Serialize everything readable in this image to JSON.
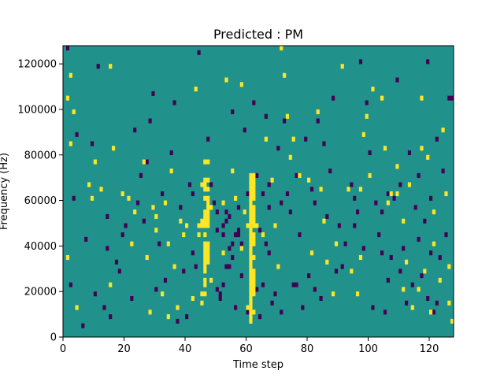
{
  "chart_data": {
    "type": "heatmap",
    "title": "Predicted : PM",
    "xlabel": "Time step",
    "ylabel": "Frequency (Hz)",
    "xlim": [
      0,
      128
    ],
    "ylim": [
      0,
      128000
    ],
    "grid": false,
    "legend": "none",
    "x_ticks": [
      0,
      20,
      40,
      60,
      80,
      100,
      120
    ],
    "x_tick_labels": [
      "0",
      "20",
      "40",
      "60",
      "80",
      "100",
      "120"
    ],
    "y_ticks": [
      0,
      20000,
      40000,
      60000,
      80000,
      100000,
      120000
    ],
    "y_tick_labels": [
      "0",
      "20000",
      "40000",
      "60000",
      "80000",
      "100000",
      "120000"
    ],
    "frequency_bins": 64,
    "colors": {
      "low": "#440154",
      "mid": "#21918c",
      "high": "#fde725"
    },
    "background_value": 0,
    "value_levels": {
      "low": -1,
      "mid": 0,
      "high": 1
    },
    "high_cells": [
      [
        46,
        76000
      ],
      [
        47,
        76000
      ],
      [
        46,
        68000
      ],
      [
        47,
        68000
      ],
      [
        45,
        66000
      ],
      [
        46,
        66000
      ],
      [
        46,
        64000
      ],
      [
        47,
        64000
      ],
      [
        46,
        60000
      ],
      [
        47,
        60000
      ],
      [
        47,
        58000
      ],
      [
        47,
        56000
      ],
      [
        46,
        54000
      ],
      [
        47,
        54000
      ],
      [
        46,
        52000
      ],
      [
        47,
        52000
      ],
      [
        45,
        50000
      ],
      [
        46,
        50000
      ],
      [
        47,
        50000
      ],
      [
        44,
        48000
      ],
      [
        45,
        48000
      ],
      [
        46,
        48000
      ],
      [
        47,
        48000
      ],
      [
        46,
        44000
      ],
      [
        46,
        40000
      ],
      [
        47,
        40000
      ],
      [
        46,
        38000
      ],
      [
        47,
        38000
      ],
      [
        46,
        36000
      ],
      [
        47,
        36000
      ],
      [
        46,
        34000
      ],
      [
        47,
        34000
      ],
      [
        46,
        32000
      ],
      [
        47,
        32000
      ],
      [
        46,
        30000
      ],
      [
        46,
        28000
      ],
      [
        46,
        24000
      ],
      [
        46,
        22000
      ],
      [
        45,
        18000
      ],
      [
        46,
        18000
      ],
      [
        45,
        14000
      ],
      [
        48,
        24000
      ],
      [
        61,
        70000
      ],
      [
        62,
        70000
      ],
      [
        61,
        68000
      ],
      [
        62,
        68000
      ],
      [
        61,
        66000
      ],
      [
        62,
        66000
      ],
      [
        61,
        64000
      ],
      [
        62,
        64000
      ],
      [
        61,
        62000
      ],
      [
        62,
        62000
      ],
      [
        61,
        60000
      ],
      [
        62,
        60000
      ],
      [
        61,
        58000
      ],
      [
        61,
        56000
      ],
      [
        62,
        56000
      ],
      [
        61,
        54000
      ],
      [
        62,
        54000
      ],
      [
        61,
        52000
      ],
      [
        62,
        52000
      ],
      [
        61,
        50000
      ],
      [
        62,
        50000
      ],
      [
        60,
        48000
      ],
      [
        61,
        48000
      ],
      [
        62,
        48000
      ],
      [
        61,
        46000
      ],
      [
        61,
        44000
      ],
      [
        62,
        44000
      ],
      [
        61,
        42000
      ],
      [
        62,
        42000
      ],
      [
        61,
        40000
      ],
      [
        62,
        40000
      ],
      [
        61,
        38000
      ],
      [
        61,
        36000
      ],
      [
        61,
        34000
      ],
      [
        62,
        34000
      ],
      [
        61,
        32000
      ],
      [
        61,
        30000
      ],
      [
        61,
        28000
      ],
      [
        62,
        28000
      ],
      [
        61,
        26000
      ],
      [
        62,
        26000
      ],
      [
        61,
        24000
      ],
      [
        62,
        24000
      ],
      [
        61,
        22000
      ],
      [
        62,
        22000
      ],
      [
        61,
        20000
      ],
      [
        62,
        20000
      ],
      [
        61,
        18000
      ],
      [
        62,
        18000
      ],
      [
        61,
        16000
      ],
      [
        61,
        14000
      ],
      [
        60,
        12000
      ],
      [
        61,
        12000
      ],
      [
        61,
        10000
      ],
      [
        62,
        10000
      ],
      [
        61,
        8000
      ],
      [
        61,
        6000
      ],
      [
        4,
        12000
      ],
      [
        2,
        84000
      ],
      [
        2,
        114000
      ],
      [
        1,
        104000
      ],
      [
        8,
        66000
      ],
      [
        9,
        60000
      ],
      [
        10,
        76000
      ],
      [
        15,
        118000
      ],
      [
        16,
        82000
      ],
      [
        22,
        40000
      ],
      [
        21,
        60000
      ],
      [
        27,
        34000
      ],
      [
        29,
        56000
      ],
      [
        30,
        46000
      ],
      [
        30,
        52000
      ],
      [
        34,
        40000
      ],
      [
        36,
        30000
      ],
      [
        39,
        44000
      ],
      [
        40,
        48000
      ],
      [
        43,
        108000
      ],
      [
        44,
        44000
      ],
      [
        52,
        36000
      ],
      [
        55,
        72000
      ],
      [
        56,
        60000
      ],
      [
        59,
        54000
      ],
      [
        63,
        48000
      ],
      [
        58,
        38000
      ],
      [
        65,
        44000
      ],
      [
        66,
        86000
      ],
      [
        71,
        126000
      ],
      [
        75,
        86000
      ],
      [
        77,
        70000
      ],
      [
        80,
        68000
      ],
      [
        84,
        64000
      ],
      [
        85,
        50000
      ],
      [
        88,
        18000
      ],
      [
        89,
        40000
      ],
      [
        94,
        28000
      ],
      [
        96,
        18000
      ],
      [
        97,
        34000
      ],
      [
        98,
        88000
      ],
      [
        100,
        70000
      ],
      [
        101,
        108000
      ],
      [
        106,
        58000
      ],
      [
        107,
        62000
      ],
      [
        109,
        62000
      ],
      [
        111,
        20000
      ],
      [
        112,
        32000
      ],
      [
        114,
        12000
      ],
      [
        116,
        20000
      ],
      [
        117,
        82000
      ],
      [
        118,
        28000
      ],
      [
        119,
        78000
      ],
      [
        121,
        54000
      ],
      [
        123,
        24000
      ],
      [
        125,
        62000
      ],
      [
        126,
        14000
      ],
      [
        127,
        6000
      ],
      [
        19,
        62000
      ],
      [
        26,
        76000
      ],
      [
        34,
        8000
      ],
      [
        37,
        12000
      ],
      [
        53,
        112000
      ],
      [
        70,
        30000
      ],
      [
        73,
        96000
      ],
      [
        93,
        64000
      ],
      [
        104,
        104000
      ],
      [
        111,
        50000
      ],
      [
        113,
        66000
      ],
      [
        117,
        104000
      ],
      [
        120,
        10000
      ],
      [
        124,
        90000
      ],
      [
        15,
        22000
      ],
      [
        23,
        54000
      ],
      [
        69,
        48000
      ],
      [
        81,
        36000
      ],
      [
        91,
        118000
      ],
      [
        97,
        64000
      ],
      [
        121,
        40000
      ],
      [
        126,
        30000
      ],
      [
        3,
        98000
      ],
      [
        48,
        56000
      ],
      [
        52,
        58000
      ],
      [
        68,
        68000
      ],
      [
        1,
        34000
      ],
      [
        105,
        82000
      ],
      [
        33,
        58000
      ],
      [
        32,
        18000
      ],
      [
        38,
        50000
      ],
      [
        35,
        72000
      ],
      [
        42,
        16000
      ],
      [
        58,
        110000
      ],
      [
        72,
        114000
      ],
      [
        99,
        96000
      ],
      [
        83,
        98000
      ],
      [
        109,
        74000
      ],
      [
        12,
        64000
      ],
      [
        28,
        10000
      ],
      [
        86,
        32000
      ],
      [
        74,
        78000
      ]
    ],
    "low_cells": [
      [
        1,
        126000
      ],
      [
        3,
        60000
      ],
      [
        4,
        88000
      ],
      [
        6,
        4000
      ],
      [
        7,
        42000
      ],
      [
        9,
        84000
      ],
      [
        11,
        118000
      ],
      [
        13,
        12000
      ],
      [
        14,
        52000
      ],
      [
        17,
        32000
      ],
      [
        18,
        28000
      ],
      [
        20,
        48000
      ],
      [
        22,
        16000
      ],
      [
        23,
        90000
      ],
      [
        25,
        70000
      ],
      [
        26,
        50000
      ],
      [
        28,
        94000
      ],
      [
        29,
        106000
      ],
      [
        30,
        20000
      ],
      [
        31,
        40000
      ],
      [
        32,
        62000
      ],
      [
        33,
        24000
      ],
      [
        35,
        80000
      ],
      [
        37,
        6000
      ],
      [
        38,
        56000
      ],
      [
        40,
        8000
      ],
      [
        41,
        66000
      ],
      [
        42,
        36000
      ],
      [
        42,
        62000
      ],
      [
        43,
        30000
      ],
      [
        49,
        58000
      ],
      [
        50,
        20000
      ],
      [
        51,
        16000
      ],
      [
        51,
        18000
      ],
      [
        52,
        22000
      ],
      [
        52,
        48000
      ],
      [
        52,
        44000
      ],
      [
        53,
        50000
      ],
      [
        54,
        38000
      ],
      [
        55,
        40000
      ],
      [
        53,
        30000
      ],
      [
        54,
        30000
      ],
      [
        57,
        44000
      ],
      [
        57,
        46000
      ],
      [
        58,
        26000
      ],
      [
        56,
        12000
      ],
      [
        59,
        90000
      ],
      [
        60,
        10000
      ],
      [
        60,
        62000
      ],
      [
        63,
        20000
      ],
      [
        64,
        8000
      ],
      [
        64,
        46000
      ],
      [
        65,
        22000
      ],
      [
        66,
        40000
      ],
      [
        67,
        56000
      ],
      [
        67,
        66000
      ],
      [
        68,
        14000
      ],
      [
        69,
        18000
      ],
      [
        70,
        82000
      ],
      [
        71,
        58000
      ],
      [
        72,
        94000
      ],
      [
        74,
        54000
      ],
      [
        75,
        22000
      ],
      [
        76,
        70000
      ],
      [
        77,
        44000
      ],
      [
        79,
        86000
      ],
      [
        81,
        64000
      ],
      [
        82,
        58000
      ],
      [
        83,
        94000
      ],
      [
        84,
        16000
      ],
      [
        86,
        52000
      ],
      [
        87,
        72000
      ],
      [
        88,
        104000
      ],
      [
        89,
        28000
      ],
      [
        90,
        48000
      ],
      [
        92,
        40000
      ],
      [
        94,
        66000
      ],
      [
        95,
        60000
      ],
      [
        97,
        120000
      ],
      [
        99,
        102000
      ],
      [
        100,
        80000
      ],
      [
        102,
        58000
      ],
      [
        103,
        44000
      ],
      [
        105,
        10000
      ],
      [
        106,
        24000
      ],
      [
        107,
        34000
      ],
      [
        108,
        60000
      ],
      [
        109,
        112000
      ],
      [
        110,
        66000
      ],
      [
        112,
        14000
      ],
      [
        113,
        80000
      ],
      [
        114,
        22000
      ],
      [
        115,
        56000
      ],
      [
        116,
        42000
      ],
      [
        117,
        26000
      ],
      [
        118,
        50000
      ],
      [
        119,
        16000
      ],
      [
        120,
        60000
      ],
      [
        121,
        10000
      ],
      [
        122,
        86000
      ],
      [
        123,
        34000
      ],
      [
        124,
        72000
      ],
      [
        125,
        44000
      ],
      [
        126,
        104000
      ],
      [
        127,
        104000
      ],
      [
        10,
        18000
      ],
      [
        15,
        8000
      ],
      [
        24,
        58000
      ],
      [
        27,
        76000
      ],
      [
        36,
        102000
      ],
      [
        44,
        124000
      ],
      [
        47,
        86000
      ],
      [
        55,
        98000
      ],
      [
        62,
        102000
      ],
      [
        66,
        96000
      ],
      [
        71,
        10000
      ],
      [
        78,
        12000
      ],
      [
        80,
        26000
      ],
      [
        85,
        84000
      ],
      [
        91,
        30000
      ],
      [
        96,
        54000
      ],
      [
        101,
        12000
      ],
      [
        104,
        36000
      ],
      [
        110,
        28000
      ],
      [
        116,
        70000
      ],
      [
        119,
        120000
      ],
      [
        122,
        14000
      ],
      [
        2,
        22000
      ],
      [
        14,
        38000
      ],
      [
        19,
        44000
      ],
      [
        39,
        28000
      ],
      [
        48,
        66000
      ],
      [
        50,
        54000
      ],
      [
        56,
        44000
      ],
      [
        58,
        40000
      ],
      [
        67,
        36000
      ],
      [
        73,
        62000
      ],
      [
        76,
        22000
      ],
      [
        82,
        20000
      ],
      [
        95,
        48000
      ],
      [
        98,
        38000
      ],
      [
        104,
        54000
      ],
      [
        106,
        62000
      ],
      [
        111,
        38000
      ],
      [
        120,
        36000
      ],
      [
        63,
        70000
      ],
      [
        65,
        62000
      ],
      [
        57,
        56000
      ],
      [
        53,
        54000
      ],
      [
        54,
        52000
      ],
      [
        50,
        46000
      ],
      [
        55,
        34000
      ]
    ]
  }
}
